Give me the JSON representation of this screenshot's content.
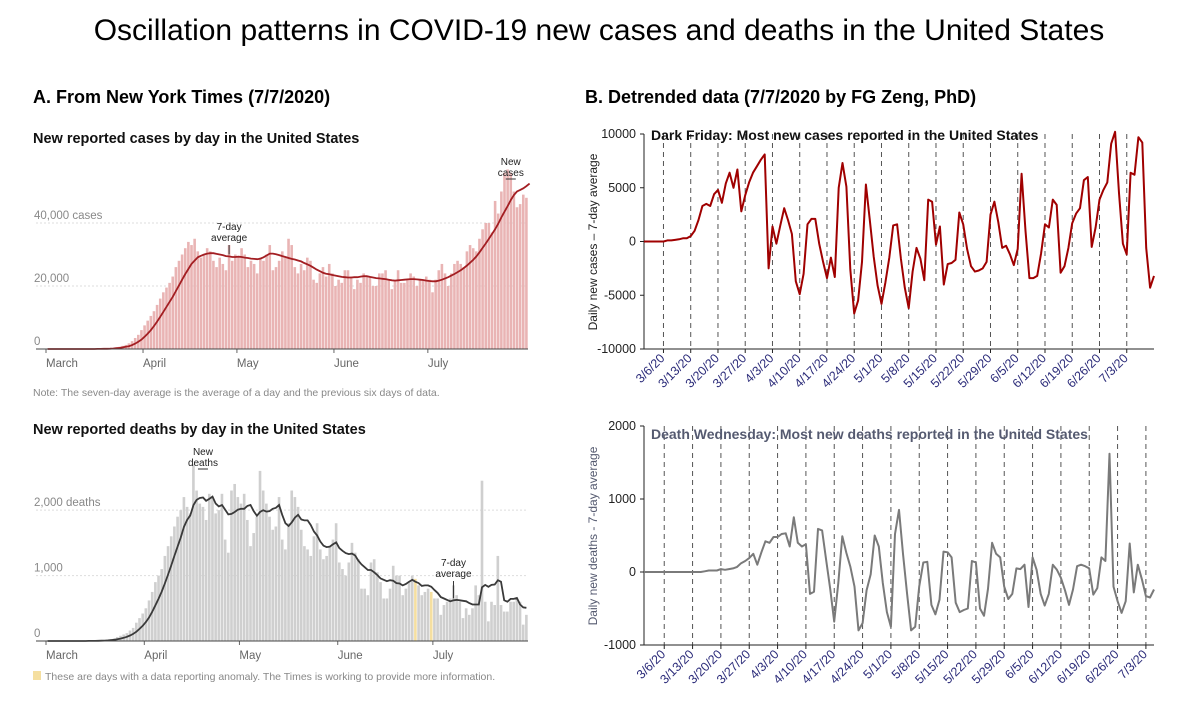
{
  "page": {
    "title": "Oscillation patterns in COVID-19 new cases and deaths in the United States",
    "panel_a_title": "A. From New York Times (7/7/2020)",
    "panel_b_title": "B. Detrended data (7/7/2020 by FG Zeng, PhD)"
  },
  "nyt": {
    "cases_note": "Note: The seven-day average is the average of a day and the previous six days of data.",
    "deaths_note": "These are days with a data reporting anomaly. The Times is working to provide more information.",
    "anomaly_color": "#f5dfa0",
    "case_bar_color": "#e9b4b4",
    "case_line_color": "#a31e22",
    "death_bar_color": "#cfcfcf",
    "death_line_color": "#3a3a3a"
  },
  "b_style": {
    "cases_line_color": "#a00000",
    "deaths_line_color": "#7a7a7a",
    "friday_line_color": "#555555"
  },
  "chart_data": [
    {
      "id": "nyt-cases",
      "type": "bar",
      "title": "New reported cases by day in the United States",
      "x_ticks": [
        "March",
        "April",
        "May",
        "June",
        "July"
      ],
      "y_ticks": [
        "0",
        "20,000",
        "40,000 cases"
      ],
      "y_tick_values": [
        0,
        20000,
        40000
      ],
      "ylim": [
        0,
        60000
      ],
      "annotations": {
        "bars": "New\ncases",
        "line": "7-day\naverage"
      },
      "x_start": "2020-03-01",
      "values": [
        1,
        1,
        1,
        2,
        2,
        2,
        3,
        3,
        4,
        5,
        6,
        8,
        10,
        15,
        20,
        30,
        50,
        80,
        100,
        150,
        200,
        300,
        500,
        700,
        1000,
        1300,
        1800,
        2500,
        3500,
        4500,
        6000,
        7500,
        9000,
        10500,
        12000,
        14000,
        16000,
        18000,
        19500,
        21000,
        23000,
        26000,
        28000,
        30000,
        32000,
        34000,
        33000,
        35000,
        31000,
        29000,
        30000,
        32000,
        31000,
        28000,
        26000,
        29000,
        27000,
        25000,
        33000,
        28000,
        30000,
        29000,
        32000,
        30000,
        26000,
        28000,
        27000,
        24000,
        29000,
        28000,
        30000,
        33000,
        25000,
        26000,
        28000,
        31000,
        29000,
        35000,
        33000,
        26000,
        24000,
        27000,
        25000,
        29000,
        28000,
        22000,
        21000,
        24000,
        26000,
        23000,
        27000,
        24000,
        20000,
        22000,
        21000,
        25000,
        25000,
        23000,
        19000,
        22000,
        21000,
        24000,
        23000,
        23000,
        20000,
        20000,
        24000,
        24000,
        25000,
        22000,
        19000,
        22000,
        25000,
        21000,
        21000,
        22000,
        24000,
        23000,
        20000,
        22000,
        22000,
        23000,
        22000,
        18000,
        22000,
        25000,
        27000,
        24000,
        20000,
        24000,
        27000,
        28000,
        27000,
        26000,
        31000,
        33000,
        32000,
        31000,
        35000,
        38000,
        40000,
        40000,
        37000,
        47000,
        43000,
        50000,
        56000,
        57000,
        56000,
        50000,
        45000,
        46000,
        49000,
        48000
      ],
      "avg": [
        0,
        0,
        0,
        0,
        0,
        0,
        0,
        1,
        1,
        2,
        3,
        4,
        6,
        8,
        10,
        15,
        20,
        30,
        50,
        70,
        100,
        150,
        250,
        350,
        500,
        700,
        900,
        1250,
        1700,
        2300,
        3000,
        3900,
        4900,
        6000,
        7300,
        8700,
        10200,
        11800,
        13400,
        15000,
        16600,
        18400,
        20200,
        22000,
        23800,
        25400,
        27000,
        28100,
        29100,
        29600,
        30000,
        30300,
        30400,
        30400,
        30200,
        30000,
        29800,
        29500,
        29400,
        29200,
        29200,
        29300,
        29200,
        29000,
        28900,
        28700,
        28600,
        28500,
        28700,
        29100,
        29700,
        30300,
        30300,
        30100,
        29800,
        29500,
        29200,
        28900,
        28600,
        28400,
        28100,
        27800,
        27300,
        26900,
        26400,
        25800,
        25200,
        24700,
        24200,
        23900,
        23700,
        23500,
        23300,
        23100,
        22900,
        22800,
        22700,
        22700,
        22800,
        22800,
        23000,
        23100,
        23100,
        22900,
        22700,
        22500,
        22400,
        22300,
        22200,
        22000,
        21800,
        21700,
        21800,
        21900,
        22000,
        22100,
        22200,
        22200,
        22100,
        22000,
        21900,
        21700,
        21600,
        21500,
        21500,
        21700,
        22000,
        22400,
        22800,
        23300,
        23800,
        24400,
        25000,
        25700,
        26500,
        27400,
        28300,
        29400,
        30700,
        32100,
        33500,
        35000,
        36500,
        38000,
        39800,
        41800,
        43600,
        45400,
        47300,
        48900,
        50000,
        50500,
        51000,
        51700,
        52500
      ]
    },
    {
      "id": "nyt-deaths",
      "type": "bar",
      "title": "New reported deaths by day in the United States",
      "x_ticks": [
        "March",
        "April",
        "May",
        "June",
        "July"
      ],
      "y_ticks": [
        "0",
        "1,000",
        "2,000 deaths"
      ],
      "y_tick_values": [
        0,
        1000,
        2000
      ],
      "ylim": [
        0,
        2950
      ],
      "annotations": {
        "bars": "New\ndeaths",
        "line": "7-day\naverage"
      },
      "x_start": "2020-03-01",
      "anomaly_dates": [
        "2020-06-25",
        "2020-06-30"
      ],
      "values": [
        0,
        0,
        0,
        0,
        0,
        0,
        0,
        0,
        0,
        1,
        1,
        1,
        2,
        2,
        3,
        5,
        8,
        12,
        15,
        20,
        30,
        40,
        60,
        80,
        100,
        120,
        160,
        200,
        280,
        350,
        420,
        500,
        620,
        750,
        900,
        1000,
        1100,
        1300,
        1450,
        1600,
        1750,
        1900,
        2000,
        2200,
        2050,
        1950,
        2700,
        2300,
        2100,
        2050,
        1850,
        2250,
        2200,
        1950,
        2000,
        2250,
        1550,
        1350,
        2300,
        2400,
        2200,
        2100,
        2250,
        1850,
        1450,
        1650,
        1900,
        2600,
        2300,
        2100,
        1900,
        1700,
        1750,
        2200,
        1550,
        1400,
        1800,
        2300,
        2200,
        2050,
        1700,
        1450,
        1400,
        1300,
        1600,
        1800,
        1400,
        1250,
        1300,
        1450,
        1550,
        1800,
        1200,
        1100,
        1000,
        1200,
        1500,
        1350,
        1250,
        800,
        800,
        700,
        1200,
        1250,
        1050,
        900,
        650,
        650,
        800,
        1150,
        1000,
        1000,
        700,
        800,
        900,
        1000,
        950,
        850,
        700,
        750,
        800,
        750,
        650,
        650,
        400,
        550,
        600,
        650,
        850,
        700,
        600,
        350,
        500,
        400,
        500,
        850,
        700,
        2450,
        600,
        300,
        600,
        550,
        1300,
        550,
        450,
        450,
        600,
        600,
        650,
        600,
        250,
        400
      ]
    },
    {
      "id": "detrended-cases",
      "type": "line",
      "ylabel": "Daily new cases – 7-day average",
      "annotation": "Dark Friday: Most new cases reported in the United States",
      "ylim": [
        -10000,
        10000
      ],
      "y_ticks": [
        -10000,
        -5000,
        0,
        5000,
        10000
      ],
      "x_ticks": [
        "3/6/20",
        "3/13/20",
        "3/20/20",
        "3/27/20",
        "4/3/20",
        "4/10/20",
        "4/17/20",
        "4/24/20",
        "5/1/20",
        "5/8/20",
        "5/15/20",
        "5/22/20",
        "5/29/20",
        "6/5/20",
        "6/12/20",
        "6/19/20",
        "6/26/20",
        "7/3/20"
      ],
      "x_start": "2020-03-01",
      "values": [
        0,
        0,
        0,
        0,
        0,
        0,
        100,
        100,
        150,
        200,
        300,
        300,
        500,
        1000,
        2000,
        3300,
        3500,
        3300,
        4400,
        4800,
        3600,
        5400,
        6400,
        5000,
        6700,
        2800,
        4300,
        5500,
        6400,
        7000,
        7600,
        8100,
        -2500,
        1400,
        -200,
        1500,
        3100,
        2000,
        700,
        -3700,
        -4900,
        -3000,
        1600,
        2100,
        2100,
        -200,
        -1900,
        -3400,
        -1500,
        -3300,
        5000,
        7300,
        5100,
        -2600,
        -6700,
        -5500,
        -1900,
        5300,
        2000,
        -1400,
        -4100,
        -5800,
        -3800,
        -1500,
        1500,
        1600,
        -1600,
        -4300,
        -6200,
        -2800,
        -600,
        -1600,
        -3600,
        3900,
        3700,
        -300,
        1400,
        -4000,
        -2100,
        -2000,
        -1700,
        2700,
        1600,
        -700,
        -2300,
        -2800,
        -2700,
        -2500,
        -1900,
        2500,
        3700,
        1800,
        -600,
        -400,
        -1200,
        -2200,
        -700,
        6300,
        1000,
        -3400,
        -3400,
        -3200,
        -1100,
        1600,
        1300,
        3900,
        3400,
        -2900,
        -2300,
        -600,
        1700,
        2600,
        3100,
        5700,
        6000,
        -500,
        1300,
        3900,
        4800,
        5500,
        9100,
        10200,
        4500,
        -200,
        -1200,
        6400,
        6200,
        9700,
        9200,
        -600,
        -4300,
        -3200
      ]
    },
    {
      "id": "detrended-deaths",
      "type": "line",
      "ylabel": "Daily new deaths - 7-day average",
      "annotation": "Death Wednesday: Most new deaths reported in the United States",
      "ylim": [
        -1000,
        2000
      ],
      "y_ticks": [
        -1000,
        0,
        1000,
        2000
      ],
      "x_ticks": [
        "3/6/20",
        "3/13/20",
        "3/20/20",
        "3/27/20",
        "4/3/20",
        "4/10/20",
        "4/17/20",
        "4/24/20",
        "5/1/20",
        "5/8/20",
        "5/15/20",
        "5/22/20",
        "5/29/20",
        "6/5/20",
        "6/12/20",
        "6/19/20",
        "6/26/20",
        "7/3/20"
      ],
      "x_start": "2020-03-01",
      "values": [
        0,
        0,
        0,
        0,
        0,
        0,
        0,
        0,
        0,
        0,
        0,
        0,
        0,
        0,
        0,
        10,
        20,
        20,
        20,
        40,
        30,
        40,
        50,
        70,
        120,
        150,
        190,
        250,
        100,
        270,
        420,
        400,
        480,
        480,
        520,
        530,
        350,
        750,
        400,
        350,
        380,
        -300,
        -270,
        590,
        570,
        170,
        -230,
        -680,
        -150,
        490,
        260,
        70,
        -200,
        -800,
        -700,
        -250,
        -30,
        500,
        350,
        -150,
        -550,
        -750,
        520,
        850,
        250,
        -300,
        -800,
        -750,
        -200,
        130,
        140,
        -450,
        -580,
        -380,
        280,
        270,
        200,
        -420,
        -550,
        -520,
        -500,
        150,
        130,
        -500,
        -600,
        -230,
        400,
        250,
        200,
        -200,
        -370,
        -300,
        50,
        40,
        100,
        -480,
        200,
        30,
        -300,
        -460,
        -300,
        100,
        30,
        -80,
        -250,
        -450,
        -240,
        80,
        100,
        80,
        50,
        -310,
        -220,
        200,
        150,
        1620,
        -200,
        -400,
        -560,
        -400,
        390,
        -280,
        100,
        -100,
        -330,
        -350,
        -240
      ]
    }
  ]
}
